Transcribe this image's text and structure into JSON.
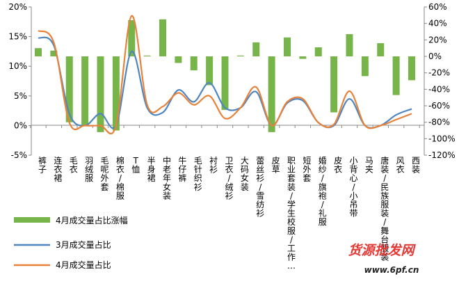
{
  "chart_data": {
    "type": "bar+line",
    "categories": [
      "裤子",
      "连衣裙",
      "毛衣",
      "羽绒服",
      "毛呢外套",
      "棉衣/棉服",
      "T恤",
      "半身裙",
      "中老年女装",
      "牛仔裤",
      "毛针织衫",
      "衬衫",
      "卫衣/绒衫",
      "大码女装",
      "蕾丝衫/雪纺衫",
      "皮草",
      "职业套装/学生校服/工作…",
      "短外套",
      "婚纱/旗袍/礼服",
      "皮衣",
      "小背心/小吊带",
      "马夹",
      "唐装/民族服装/舞台服装",
      "风衣",
      "西装"
    ],
    "series": [
      {
        "name": "4月成交量占比涨幅",
        "type": "bar",
        "axis": "right",
        "color": "#77b44a",
        "values": [
          0.1,
          0.07,
          -0.8,
          -0.85,
          -0.92,
          -0.9,
          0.44,
          0.01,
          0.45,
          -0.08,
          -0.17,
          -0.35,
          -0.65,
          0.01,
          0.17,
          -0.92,
          0.23,
          -0.03,
          0.11,
          -0.68,
          0.27,
          -0.24,
          0.16,
          -0.47,
          -0.29
        ]
      },
      {
        "name": "3月成交量占比",
        "type": "line",
        "axis": "left",
        "color": "#4f86bf",
        "values": [
          0.148,
          0.135,
          0.02,
          0.0,
          0.02,
          0.0,
          0.125,
          0.03,
          0.022,
          0.06,
          0.04,
          0.072,
          0.03,
          0.03,
          0.057,
          0.0,
          0.038,
          0.042,
          0.005,
          0.0,
          0.045,
          0.0,
          0.0,
          0.018,
          0.028
        ]
      },
      {
        "name": "4月成交量占比",
        "type": "line",
        "axis": "left",
        "color": "#e8823a",
        "values": [
          0.16,
          0.14,
          0.005,
          0.0,
          0.0,
          0.0,
          0.185,
          0.035,
          0.032,
          0.055,
          0.035,
          0.05,
          0.012,
          0.03,
          0.065,
          0.0,
          0.04,
          0.045,
          0.005,
          0.002,
          0.058,
          0.0,
          0.0,
          0.01,
          0.02
        ]
      }
    ],
    "y_left": {
      "min": -0.05,
      "max": 0.2,
      "step": 0.05,
      "ticks": [
        "-5%",
        "0%",
        "5%",
        "10%",
        "15%",
        "20%"
      ]
    },
    "y_right": {
      "min": -1.2,
      "max": 0.6,
      "step": 0.2,
      "ticks": [
        "-120%",
        "-100%",
        "-80%",
        "-60%",
        "-40%",
        "-20%",
        "0%",
        "20%",
        "40%",
        "60%"
      ]
    },
    "grid": false,
    "legend_position": "bottom-left"
  },
  "legend": {
    "bar_label": "4月成交量占比涨幅",
    "line1_label": "3月成交量占比",
    "line2_label": "4月成交量占比"
  },
  "watermark": {
    "title": "货源批发网",
    "url": "www.6pf.cn"
  }
}
